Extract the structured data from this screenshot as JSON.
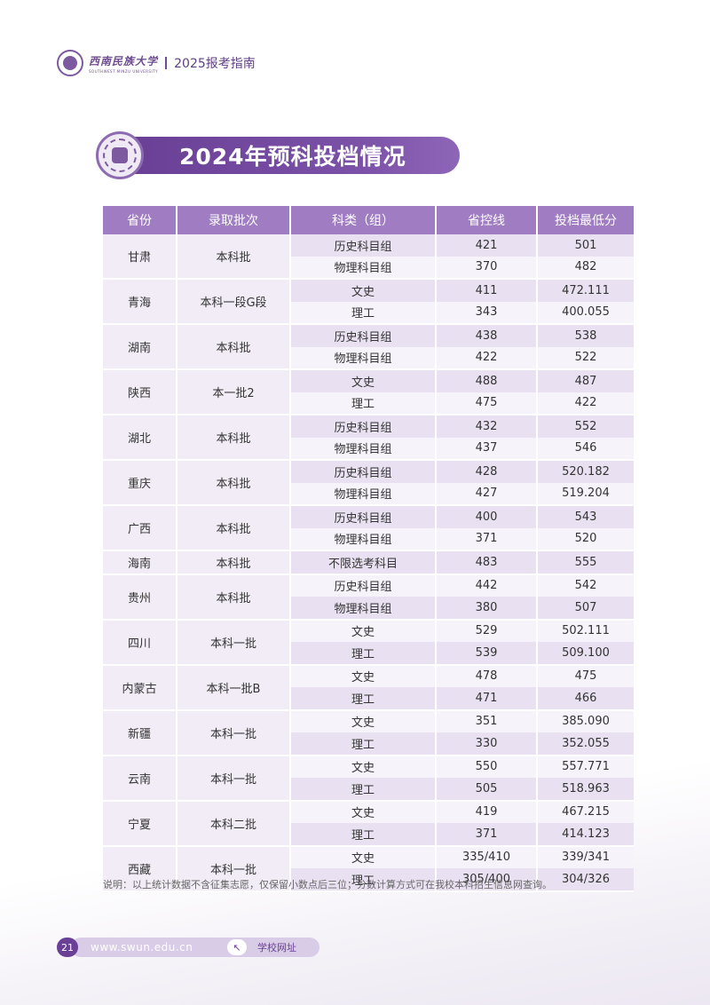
{
  "header": {
    "logo_text": "西南民族大学",
    "logo_subtext": "SOUTHWEST MINZU UNIVERSITY",
    "title": "2025报考指南"
  },
  "banner": {
    "title": "2024年预科投档情况"
  },
  "table": {
    "headers": [
      "省份",
      "录取批次",
      "科类（组）",
      "省控线",
      "投档最低分"
    ],
    "groups": [
      {
        "province": "甘肃",
        "batch": "本科批",
        "rows": [
          [
            "历史科目组",
            "421",
            "501"
          ],
          [
            "物理科目组",
            "370",
            "482"
          ]
        ]
      },
      {
        "province": "青海",
        "batch": "本科一段G段",
        "rows": [
          [
            "文史",
            "411",
            "472.111"
          ],
          [
            "理工",
            "343",
            "400.055"
          ]
        ]
      },
      {
        "province": "湖南",
        "batch": "本科批",
        "rows": [
          [
            "历史科目组",
            "438",
            "538"
          ],
          [
            "物理科目组",
            "422",
            "522"
          ]
        ]
      },
      {
        "province": "陕西",
        "batch": "本一批2",
        "rows": [
          [
            "文史",
            "488",
            "487"
          ],
          [
            "理工",
            "475",
            "422"
          ]
        ]
      },
      {
        "province": "湖北",
        "batch": "本科批",
        "rows": [
          [
            "历史科目组",
            "432",
            "552"
          ],
          [
            "物理科目组",
            "437",
            "546"
          ]
        ]
      },
      {
        "province": "重庆",
        "batch": "本科批",
        "rows": [
          [
            "历史科目组",
            "428",
            "520.182"
          ],
          [
            "物理科目组",
            "427",
            "519.204"
          ]
        ]
      },
      {
        "province": "广西",
        "batch": "本科批",
        "rows": [
          [
            "历史科目组",
            "400",
            "543"
          ],
          [
            "物理科目组",
            "371",
            "520"
          ]
        ]
      },
      {
        "province": "海南",
        "batch": "本科批",
        "rows": [
          [
            "不限选考科目",
            "483",
            "555"
          ]
        ]
      },
      {
        "province": "贵州",
        "batch": "本科批",
        "rows": [
          [
            "历史科目组",
            "442",
            "542"
          ],
          [
            "物理科目组",
            "380",
            "507"
          ]
        ]
      },
      {
        "province": "四川",
        "batch": "本科一批",
        "rows": [
          [
            "文史",
            "529",
            "502.111"
          ],
          [
            "理工",
            "539",
            "509.100"
          ]
        ]
      },
      {
        "province": "内蒙古",
        "batch": "本科一批B",
        "rows": [
          [
            "文史",
            "478",
            "475"
          ],
          [
            "理工",
            "471",
            "466"
          ]
        ]
      },
      {
        "province": "新疆",
        "batch": "本科一批",
        "rows": [
          [
            "文史",
            "351",
            "385.090"
          ],
          [
            "理工",
            "330",
            "352.055"
          ]
        ]
      },
      {
        "province": "云南",
        "batch": "本科一批",
        "rows": [
          [
            "文史",
            "550",
            "557.771"
          ],
          [
            "理工",
            "505",
            "518.963"
          ]
        ]
      },
      {
        "province": "宁夏",
        "batch": "本科二批",
        "rows": [
          [
            "文史",
            "419",
            "467.215"
          ],
          [
            "理工",
            "371",
            "414.123"
          ]
        ]
      },
      {
        "province": "西藏",
        "batch": "本科一批",
        "rows": [
          [
            "文史",
            "335/410",
            "339/341"
          ],
          [
            "理工",
            "305/400",
            "304/326"
          ]
        ]
      }
    ]
  },
  "note": "说明：以上统计数据不含征集志愿，仅保留小数点后三位；分数计算方式可在我校本科招生信息网查询。",
  "footer": {
    "page_number": "21",
    "url": "www.swun.edu.cn",
    "url_label": "学校网址"
  },
  "colors": {
    "accent": "#6a3f96",
    "header_cell": "#a07cc2",
    "row_dark": "#e9e1f1",
    "row_light": "#f6f3fa"
  }
}
